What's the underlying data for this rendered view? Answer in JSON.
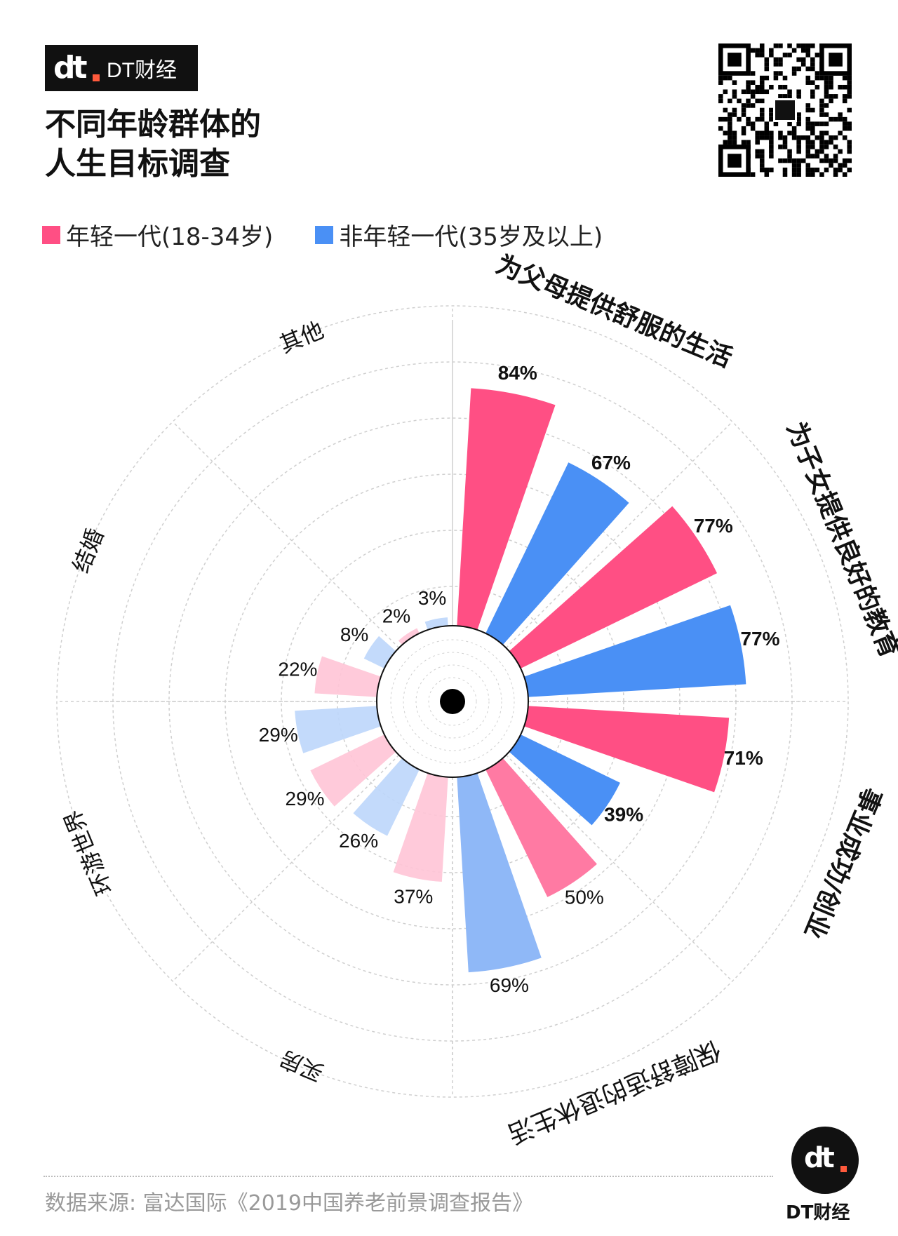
{
  "brand": {
    "logo_text": "dt",
    "name": "DT财经"
  },
  "title": {
    "line1": "不同年龄群体的",
    "line2": "人生目标调查"
  },
  "legend": [
    {
      "label": "年轻一代(18-34岁)",
      "color": "#ff4f84"
    },
    {
      "label": "非年轻一代(35岁及以上)",
      "color": "#4a90f5"
    }
  ],
  "chart_data": {
    "type": "polar-bar",
    "series": [
      {
        "name": "年轻一代(18-34岁)",
        "values": [
          84,
          77,
          71,
          50,
          37,
          29,
          22,
          2
        ]
      },
      {
        "name": "非年轻一代(35岁及以上)",
        "values": [
          67,
          77,
          39,
          69,
          26,
          29,
          8,
          3
        ]
      }
    ],
    "categories": [
      "为父母提供舒服的生活",
      "为子女提供良好的教育",
      "事业成功/创业",
      "保障舒适的退休生活",
      "买房",
      "环游世界",
      "结婚",
      "其他"
    ],
    "value_labels": [
      [
        "84%",
        "67%"
      ],
      [
        "77%",
        "77%"
      ],
      [
        "71%",
        "39%"
      ],
      [
        "50%",
        "69%"
      ],
      [
        "37%",
        "26%"
      ],
      [
        "29%",
        "29%"
      ],
      [
        "22%",
        "8%"
      ],
      [
        "2%",
        "3%"
      ]
    ],
    "ylim": [
      0,
      100
    ],
    "colors": {
      "young_strong": "#ff4f84",
      "young_light": "#ffc4d6",
      "old_strong": "#4a90f5",
      "old_light": "#bcd6fb"
    }
  },
  "source": "数据来源: 富达国际《2019中国养老前景调查报告》",
  "footer_badge": {
    "logo_text": "dt",
    "name": "DT财经"
  }
}
